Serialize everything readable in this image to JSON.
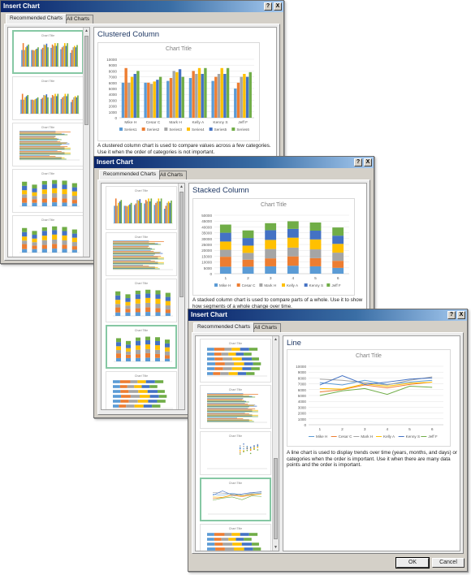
{
  "dialog_title": "Insert Chart",
  "help_glyph": "?",
  "close_glyph": "X",
  "tabs": {
    "recommended": "Recommended Charts",
    "all": "All Charts"
  },
  "buttons": {
    "ok": "OK",
    "cancel": "Cancel"
  },
  "thumb_title": "Chart Title",
  "colors": {
    "series": [
      "#5b9bd5",
      "#ed7d31",
      "#a5a5a5",
      "#ffc000",
      "#4472c4",
      "#70ad47"
    ],
    "title_bar": "#0a246a",
    "selected_border": "#86c8a4"
  },
  "dialogs": [
    {
      "heading": "Clustered Column",
      "description": "A clustered column chart is used to compare values across a few categories. Use it when the order of categories is not important."
    },
    {
      "heading": "Stacked Column",
      "description": "A stacked column chart is used to compare parts of a whole. Use it to show how segments of a whole change over time."
    },
    {
      "heading": "Line",
      "description": "A line chart is used to display trends over time (years, months, and days) or categories when the order is important. Use it when there are many data points and the order is important."
    }
  ],
  "chart_data": [
    {
      "type": "bar",
      "title": "Chart Title",
      "categories": [
        "Mike H",
        "Cesar C",
        "Mark H",
        "Kelly A",
        "Kenny S",
        "Jeff F"
      ],
      "series": [
        {
          "name": "Series1",
          "values": [
            6000,
            6000,
            6300,
            6800,
            6300,
            5000
          ]
        },
        {
          "name": "Series2",
          "values": [
            8500,
            6000,
            6800,
            8000,
            7000,
            6000
          ]
        },
        {
          "name": "Series3",
          "values": [
            6000,
            5800,
            8000,
            7500,
            7500,
            7000
          ]
        },
        {
          "name": "Series4",
          "values": [
            7000,
            6200,
            7800,
            8500,
            8500,
            7500
          ]
        },
        {
          "name": "Series5",
          "values": [
            7500,
            6500,
            8300,
            7500,
            7500,
            7000
          ]
        },
        {
          "name": "Series6",
          "values": [
            8000,
            7000,
            7000,
            8500,
            8500,
            7800
          ]
        }
      ],
      "y_ticks": [
        "0",
        "1000",
        "2000",
        "3000",
        "4000",
        "5000",
        "6000",
        "7000",
        "8000",
        "9000",
        "10000"
      ],
      "ylim": [
        0,
        10000
      ]
    },
    {
      "type": "bar",
      "title": "Chart Title",
      "categories": [
        "1",
        "2",
        "3",
        "4",
        "5",
        "6"
      ],
      "series": [
        {
          "name": "Mike H",
          "values": [
            6000,
            6000,
            6300,
            6800,
            6300,
            5000
          ]
        },
        {
          "name": "Cesar C",
          "values": [
            8500,
            6000,
            6800,
            8000,
            7000,
            6000
          ]
        },
        {
          "name": "Mark H",
          "values": [
            6000,
            5800,
            8000,
            7500,
            7500,
            7000
          ]
        },
        {
          "name": "Kelly A",
          "values": [
            7000,
            6200,
            7800,
            8500,
            8500,
            7500
          ]
        },
        {
          "name": "Kenny S",
          "values": [
            7500,
            6500,
            8300,
            7500,
            7500,
            7000
          ]
        },
        {
          "name": "Jeff F",
          "values": [
            7000,
            6500,
            6000,
            6500,
            7000,
            7000
          ]
        }
      ],
      "y_ticks": [
        "0",
        "5000",
        "10000",
        "15000",
        "20000",
        "25000",
        "30000",
        "35000",
        "40000",
        "45000",
        "50000"
      ],
      "ylim": [
        0,
        50000
      ]
    },
    {
      "type": "line",
      "title": "Chart Title",
      "categories": [
        "1",
        "2",
        "3",
        "4",
        "5",
        "6"
      ],
      "series": [
        {
          "name": "Mike H",
          "values": [
            7200,
            6800,
            7600,
            6900,
            7300,
            7600
          ]
        },
        {
          "name": "Cesar C",
          "values": [
            5600,
            6000,
            6800,
            6300,
            6900,
            7300
          ]
        },
        {
          "name": "Mark H",
          "values": [
            7800,
            7600,
            7200,
            6800,
            7600,
            8200
          ]
        },
        {
          "name": "Kelly A",
          "values": [
            6200,
            6100,
            7000,
            6600,
            7100,
            7300
          ]
        },
        {
          "name": "Kenny S",
          "values": [
            6800,
            8400,
            6900,
            7300,
            7800,
            8000
          ]
        },
        {
          "name": "Jeff F",
          "values": [
            5000,
            5800,
            6200,
            5200,
            6600,
            6400
          ]
        }
      ],
      "y_ticks": [
        "0",
        "1000",
        "2000",
        "3000",
        "4000",
        "5000",
        "6000",
        "7000",
        "8000",
        "9000",
        "10000"
      ],
      "ylim": [
        0,
        10000
      ]
    }
  ]
}
